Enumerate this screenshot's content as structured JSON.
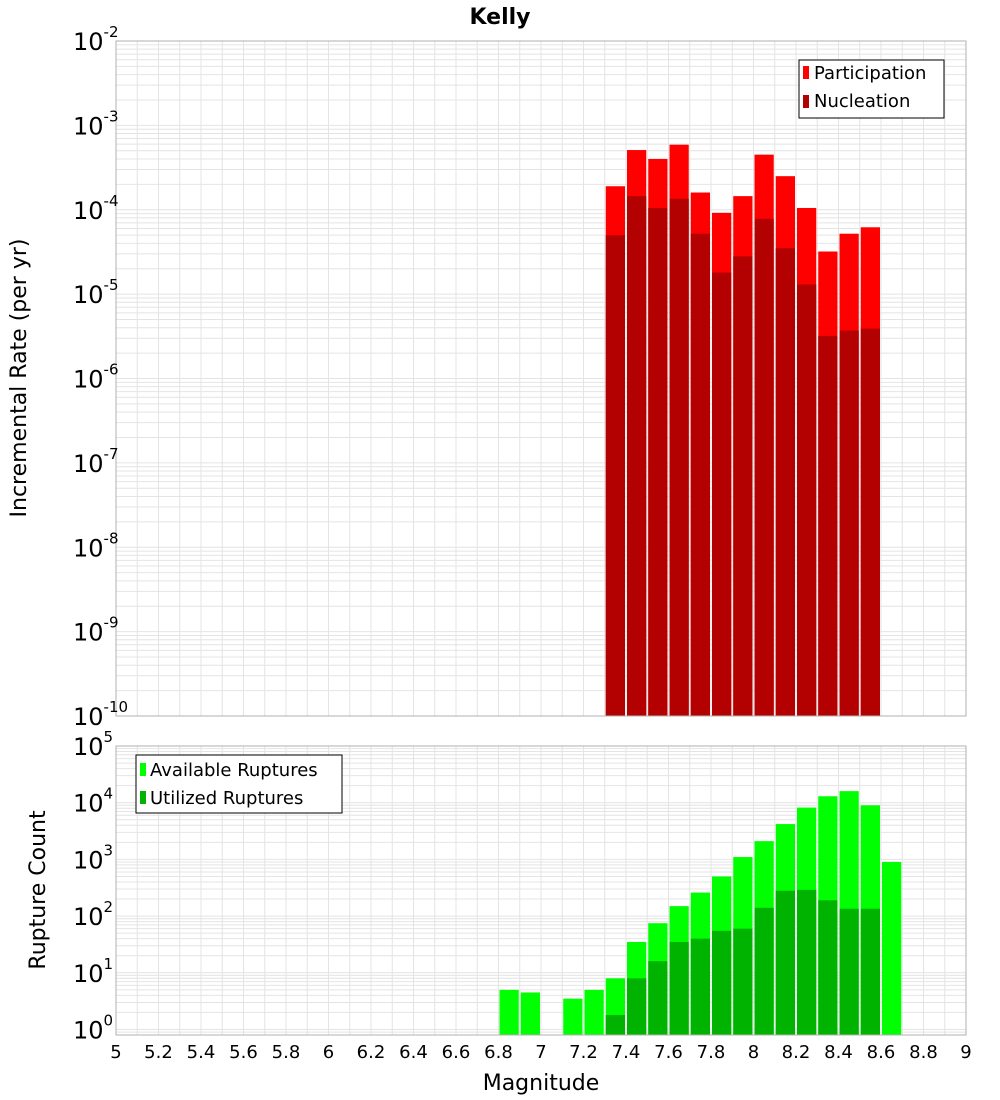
{
  "colors": {
    "participation": "#ff0000",
    "nucleation": "#b30000",
    "available": "#00ff00",
    "utilized": "#00b300",
    "grid": "#e4e4e4",
    "frame": "#b0b0b0"
  },
  "chart_data": [
    {
      "type": "bar",
      "title": "Kelly",
      "xlabel": "",
      "ylabel": "Incremental Rate (per yr)",
      "yscale": "log",
      "xlim": [
        5,
        9
      ],
      "ylim": [
        1e-10,
        0.01
      ],
      "ytick_exponents": [
        "-2",
        "-3",
        "-4",
        "-5",
        "-6",
        "-7",
        "-8",
        "-9",
        "-10"
      ],
      "bin_width": 0.1,
      "legend_position": "top-right",
      "x": [
        7.35,
        7.45,
        7.55,
        7.65,
        7.75,
        7.85,
        7.95,
        8.05,
        8.15,
        8.25,
        8.35,
        8.45,
        8.55
      ],
      "series": [
        {
          "name": "Participation",
          "color_key": "participation",
          "values": [
            0.00019,
            0.00051,
            0.0004,
            0.00059,
            0.00016,
            9.2e-05,
            0.000145,
            0.00045,
            0.00025,
            0.000105,
            3.2e-05,
            5.2e-05,
            6.2e-05
          ]
        },
        {
          "name": "Nucleation",
          "color_key": "nucleation",
          "values": [
            5e-05,
            0.000145,
            0.000105,
            0.000135,
            5.2e-05,
            1.8e-05,
            2.8e-05,
            7.8e-05,
            3.5e-05,
            1.3e-05,
            3.2e-06,
            3.7e-06,
            3.9e-06
          ]
        }
      ]
    },
    {
      "type": "bar",
      "xlabel": "Magnitude",
      "ylabel": "Rupture Count",
      "yscale": "log",
      "xlim": [
        5,
        9
      ],
      "ylim": [
        0.8,
        100000
      ],
      "ytick_exponents": [
        "0",
        "1",
        "2",
        "3",
        "4",
        "5"
      ],
      "xticks": [
        "5",
        "5.2",
        "5.4",
        "5.6",
        "5.8",
        "6",
        "6.2",
        "6.4",
        "6.6",
        "6.8",
        "7",
        "7.2",
        "7.4",
        "7.6",
        "7.8",
        "8",
        "8.2",
        "8.4",
        "8.6",
        "8.8",
        "9"
      ],
      "bin_width": 0.1,
      "legend_position": "top-left",
      "x": [
        6.85,
        6.95,
        7.15,
        7.25,
        7.35,
        7.45,
        7.55,
        7.65,
        7.75,
        7.85,
        7.95,
        8.05,
        8.15,
        8.25,
        8.35,
        8.45,
        8.55,
        8.65
      ],
      "series": [
        {
          "name": "Available Ruptures",
          "color_key": "available",
          "values": [
            5,
            4.5,
            3.5,
            5,
            8,
            35,
            75,
            150,
            260,
            500,
            1100,
            2100,
            4200,
            8200,
            13000,
            16000,
            9000,
            900
          ]
        },
        {
          "name": "Utilized Ruptures",
          "color_key": "utilized",
          "values": [
            null,
            null,
            null,
            null,
            1.8,
            8,
            16,
            35,
            40,
            55,
            60,
            140,
            280,
            290,
            190,
            135,
            135,
            null
          ]
        }
      ]
    }
  ]
}
